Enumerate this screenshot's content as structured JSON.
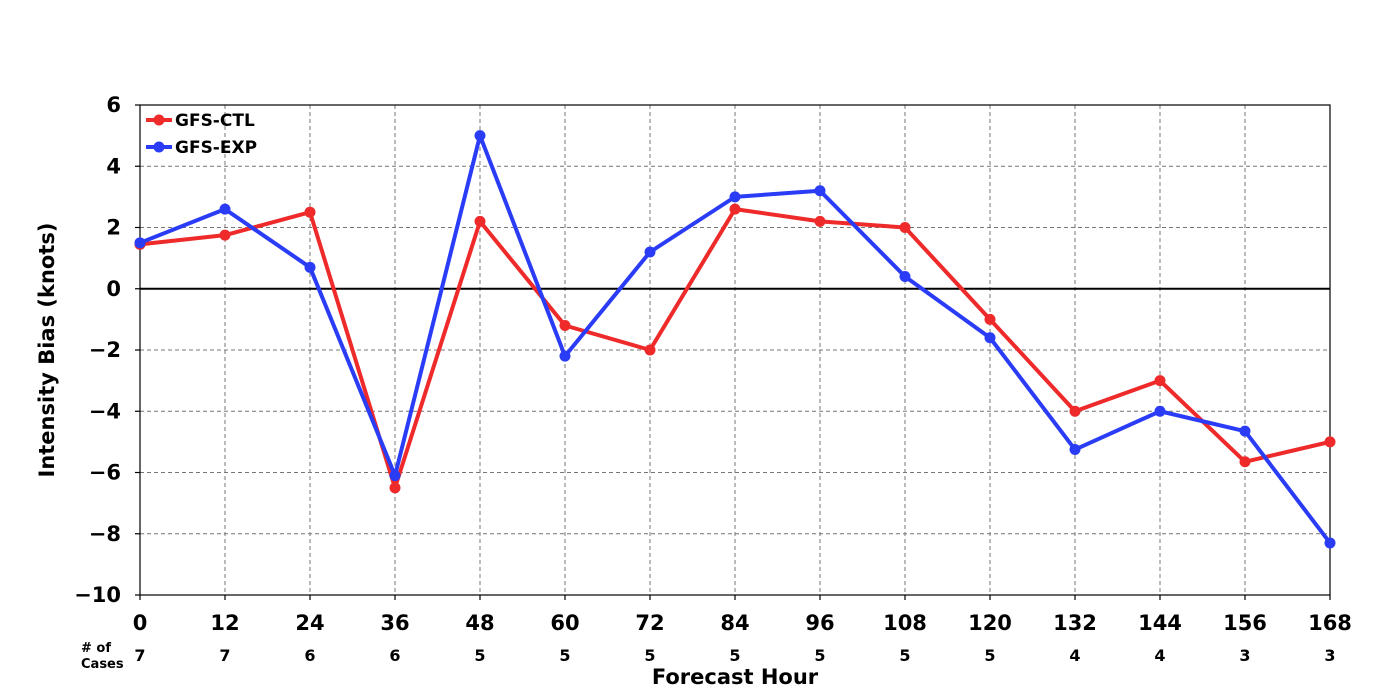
{
  "chart_data": {
    "type": "line",
    "xlabel": "Forecast Hour",
    "ylabel": "Intensity Bias (knots)",
    "x": [
      0,
      12,
      24,
      36,
      48,
      60,
      72,
      84,
      96,
      108,
      120,
      132,
      144,
      156,
      168
    ],
    "x_tick_labels": [
      "0",
      "12",
      "24",
      "36",
      "48",
      "60",
      "72",
      "84",
      "96",
      "108",
      "120",
      "132",
      "144",
      "156",
      "168"
    ],
    "y_ticks": [
      6,
      4,
      2,
      0,
      -2,
      -4,
      -6,
      -8,
      -10
    ],
    "y_tick_labels": [
      "6",
      "4",
      "2",
      "0",
      "−2",
      "−4",
      "−6",
      "−8",
      "−10"
    ],
    "xlim": [
      0,
      168
    ],
    "ylim": [
      -10,
      6
    ],
    "grid": true,
    "zero_line": true,
    "legend_position": "top-left",
    "cases_label_line1": "# of",
    "cases_label_line2": "Cases",
    "cases": [
      "7",
      "7",
      "6",
      "6",
      "5",
      "5",
      "5",
      "5",
      "5",
      "5",
      "5",
      "4",
      "4",
      "3",
      "3"
    ],
    "series": [
      {
        "name": "GFS-CTL",
        "color": "#ee2a2a",
        "values": [
          1.45,
          1.75,
          2.5,
          -6.5,
          2.2,
          -1.2,
          -2.0,
          2.6,
          2.2,
          2.0,
          -1.0,
          -4.0,
          -3.0,
          -5.65,
          -5.0
        ]
      },
      {
        "name": "GFS-EXP",
        "color": "#2a3cf5",
        "values": [
          1.5,
          2.6,
          0.7,
          -6.1,
          5.0,
          -2.2,
          1.2,
          3.0,
          3.2,
          0.4,
          -1.6,
          -5.25,
          -4.0,
          -4.65,
          -8.3
        ]
      }
    ]
  }
}
